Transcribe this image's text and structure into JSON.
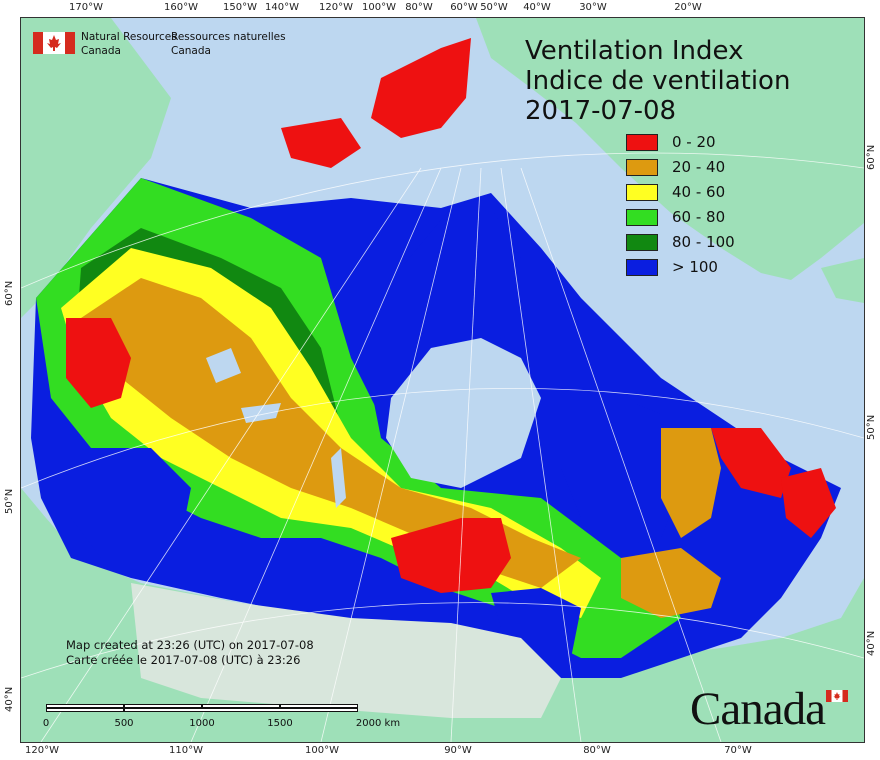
{
  "title": {
    "line1": "Ventilation Index",
    "line2": "Indice de ventilation",
    "date": "2017-07-08"
  },
  "agency": {
    "name_en_line1": "Natural Resources",
    "name_en_line2": "Canada",
    "name_fr_line1": "Ressources naturelles",
    "name_fr_line2": "Canada"
  },
  "legend": [
    {
      "label": "0 - 20",
      "color": "#ee1111"
    },
    {
      "label": "20 - 40",
      "color": "#dd9a10"
    },
    {
      "label": "40 - 60",
      "color": "#ffff22"
    },
    {
      "label": "60 - 80",
      "color": "#33dd22"
    },
    {
      "label": "80 - 100",
      "color": "#118811"
    },
    {
      "label": "> 100",
      "color": "#0a1ee0"
    }
  ],
  "credit": {
    "line1": "Map created at 23:26 (UTC) on 2017-07-08",
    "line2": "Carte créée le 2017-07-08 (UTC) à 23:26"
  },
  "scale": {
    "labels": [
      "0",
      "500",
      "1000",
      "1500",
      "2000 km"
    ]
  },
  "graticule": {
    "top_lon": [
      "170°W",
      "160°W",
      "150°W",
      "140°W",
      "120°W",
      "100°W",
      "80°W",
      "60°W",
      "50°W",
      "40°W",
      "30°W",
      "20°W"
    ],
    "bottom_lon": [
      "120°W",
      "110°W",
      "100°W",
      "90°W",
      "80°W",
      "70°W"
    ],
    "left_lat": [
      "60°N",
      "50°N",
      "40°N"
    ],
    "right_lat": [
      "60°N",
      "50°N",
      "40°N"
    ]
  },
  "wordmark": "Canada",
  "colors": {
    "ocean": "#bdd7f0",
    "land_outside": "#9ee0b8",
    "land_gray": "#d8e6dc",
    "flag_red": "#d52b1e"
  }
}
